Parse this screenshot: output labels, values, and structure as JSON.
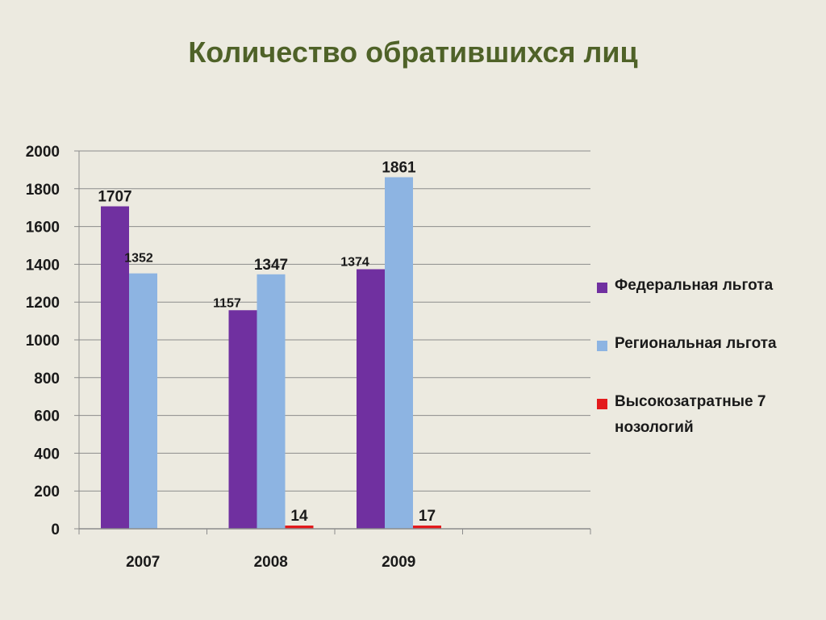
{
  "title": "Количество обратившихся лиц",
  "chart_data": {
    "type": "bar",
    "categories": [
      "2007",
      "2008",
      "2009",
      ""
    ],
    "ylim": [
      0,
      2000
    ],
    "yticks": [
      0,
      200,
      400,
      600,
      800,
      1000,
      1200,
      1400,
      1600,
      1800,
      2000
    ],
    "grid": true,
    "legend_position": "right",
    "series": [
      {
        "name": "Федеральная льгота",
        "color": "#7030A0",
        "values": [
          1707,
          1157,
          1374,
          null
        ],
        "labels": [
          "1707",
          "1157",
          "1374",
          ""
        ]
      },
      {
        "name": "Региональная льгота",
        "color": "#8DB4E2",
        "values": [
          1352,
          1347,
          1861,
          null
        ],
        "labels": [
          "1352",
          "1347",
          "1861",
          ""
        ]
      },
      {
        "name": "Высокозатратные 7 нозологий",
        "color": "#E31A1C",
        "values": [
          null,
          14,
          17,
          null
        ],
        "labels": [
          "",
          "14",
          "17",
          ""
        ]
      }
    ]
  }
}
